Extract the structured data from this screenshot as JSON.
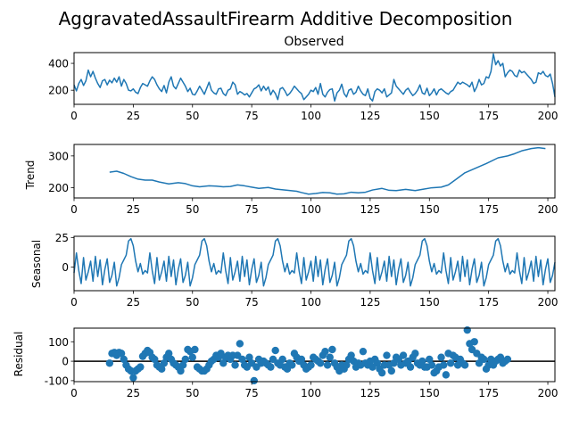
{
  "figure": {
    "suptitle": "AggravatedAssaultFirearm Additive Decomposition"
  },
  "chart_data": [
    {
      "type": "line",
      "name": "observed",
      "title": "Observed",
      "xlabel": "",
      "ylabel": "",
      "xlim": [
        0,
        203
      ],
      "ylim": [
        95,
        480
      ],
      "xticks": [
        0,
        25,
        50,
        75,
        100,
        125,
        150,
        175,
        200
      ],
      "yticks": [
        200,
        400
      ],
      "grid": false,
      "color": "#1f77b4",
      "x_start": 0,
      "values": [
        240,
        195,
        250,
        280,
        235,
        270,
        350,
        300,
        340,
        290,
        250,
        220,
        270,
        280,
        240,
        275,
        255,
        290,
        260,
        300,
        230,
        280,
        250,
        200,
        195,
        210,
        185,
        175,
        220,
        250,
        240,
        230,
        270,
        300,
        280,
        240,
        210,
        190,
        235,
        180,
        260,
        300,
        230,
        210,
        250,
        290,
        260,
        230,
        190,
        215,
        170,
        165,
        195,
        230,
        200,
        170,
        215,
        260,
        200,
        180,
        170,
        210,
        215,
        175,
        160,
        200,
        210,
        260,
        240,
        170,
        190,
        180,
        165,
        175,
        150,
        180,
        210,
        220,
        240,
        195,
        230,
        200,
        225,
        165,
        200,
        175,
        130,
        210,
        220,
        195,
        160,
        175,
        200,
        230,
        210,
        190,
        175,
        130,
        150,
        170,
        200,
        190,
        220,
        170,
        250,
        170,
        150,
        185,
        205,
        210,
        120,
        180,
        200,
        245,
        175,
        150,
        200,
        210,
        170,
        185,
        230,
        195,
        170,
        160,
        210,
        140,
        120,
        190,
        210,
        200,
        180,
        210,
        150,
        165,
        180,
        280,
        230,
        210,
        190,
        170,
        200,
        215,
        185,
        160,
        175,
        200,
        240,
        180,
        170,
        215,
        160,
        180,
        210,
        165,
        200,
        210,
        195,
        180,
        170,
        190,
        200,
        230,
        260,
        245,
        260,
        250,
        240,
        225,
        260,
        190,
        225,
        280,
        240,
        250,
        300,
        290,
        340,
        470,
        390,
        420,
        380,
        400,
        300,
        330,
        350,
        340,
        310,
        300,
        350,
        330,
        340,
        320,
        300,
        280,
        250,
        260,
        330,
        320,
        340,
        310,
        300,
        320,
        250,
        150
      ]
    },
    {
      "type": "line",
      "name": "trend",
      "title": "",
      "xlabel": "",
      "ylabel": "Trend",
      "xlim": [
        0,
        203
      ],
      "ylim": [
        168,
        336
      ],
      "xticks": [
        0,
        25,
        50,
        75,
        100,
        125,
        150,
        175,
        200
      ],
      "yticks": [
        200,
        300
      ],
      "grid": false,
      "color": "#1f77b4",
      "points": [
        [
          15,
          249
        ],
        [
          18,
          252
        ],
        [
          21,
          245
        ],
        [
          24,
          235
        ],
        [
          27,
          227
        ],
        [
          30,
          224
        ],
        [
          33,
          224
        ],
        [
          36,
          218
        ],
        [
          40,
          212
        ],
        [
          44,
          216
        ],
        [
          47,
          213
        ],
        [
          50,
          206
        ],
        [
          53,
          203
        ],
        [
          57,
          206
        ],
        [
          60,
          205
        ],
        [
          63,
          203
        ],
        [
          66,
          204
        ],
        [
          69,
          209
        ],
        [
          72,
          206
        ],
        [
          75,
          202
        ],
        [
          78,
          198
        ],
        [
          82,
          201
        ],
        [
          85,
          196
        ],
        [
          90,
          192
        ],
        [
          94,
          189
        ],
        [
          96,
          185
        ],
        [
          99,
          180
        ],
        [
          102,
          182
        ],
        [
          105,
          185
        ],
        [
          108,
          184
        ],
        [
          111,
          180
        ],
        [
          114,
          181
        ],
        [
          117,
          186
        ],
        [
          120,
          184
        ],
        [
          123,
          186
        ],
        [
          126,
          193
        ],
        [
          130,
          198
        ],
        [
          133,
          192
        ],
        [
          136,
          191
        ],
        [
          140,
          195
        ],
        [
          144,
          191
        ],
        [
          147,
          195
        ],
        [
          151,
          200
        ],
        [
          155,
          202
        ],
        [
          158,
          209
        ],
        [
          161,
          225
        ],
        [
          165,
          247
        ],
        [
          169,
          260
        ],
        [
          174,
          276
        ],
        [
          179,
          294
        ],
        [
          183,
          300
        ],
        [
          186,
          307
        ],
        [
          189,
          316
        ],
        [
          193,
          323
        ],
        [
          196,
          326
        ],
        [
          199,
          323
        ]
      ]
    },
    {
      "type": "line",
      "name": "seasonal",
      "title": "",
      "xlabel": "",
      "ylabel": "Seasonal",
      "xlim": [
        0,
        203
      ],
      "ylim": [
        -20,
        26
      ],
      "xticks": [
        0,
        25,
        50,
        75,
        100,
        125,
        150,
        175,
        200
      ],
      "yticks": [
        0,
        25
      ],
      "grid": false,
      "color": "#1f77b4",
      "period": 31,
      "x_start": 0,
      "pattern": [
        -5,
        12,
        -3,
        -14,
        8,
        -11,
        -4,
        5,
        -12,
        9,
        -8,
        6,
        -15,
        -2,
        7,
        -13,
        -7,
        4,
        -16,
        -9,
        2,
        6,
        10,
        22,
        24,
        18,
        5,
        -4,
        3,
        -6,
        -3
      ]
    },
    {
      "type": "scatter",
      "name": "residual",
      "title": "",
      "xlabel": "",
      "ylabel": "Residual",
      "xlim": [
        0,
        203
      ],
      "ylim": [
        -105,
        170
      ],
      "xticks": [
        0,
        25,
        50,
        75,
        100,
        125,
        150,
        175,
        200
      ],
      "yticks": [
        -100,
        0,
        100
      ],
      "grid": false,
      "color": "#1f77b4",
      "hline": 0,
      "x_start": 15,
      "values": [
        -10,
        40,
        45,
        30,
        45,
        40,
        10,
        -20,
        -40,
        -50,
        -85,
        -50,
        -40,
        -30,
        25,
        40,
        55,
        45,
        20,
        10,
        -20,
        -30,
        -40,
        -10,
        20,
        40,
        10,
        -10,
        -20,
        -30,
        -50,
        -20,
        10,
        60,
        50,
        20,
        60,
        -30,
        -40,
        -50,
        -50,
        -40,
        -20,
        0,
        10,
        30,
        20,
        40,
        -10,
        20,
        30,
        10,
        30,
        -20,
        30,
        90,
        10,
        -20,
        -30,
        20,
        -10,
        -100,
        -30,
        10,
        -10,
        0,
        -10,
        -20,
        -30,
        10,
        55,
        -10,
        -20,
        10,
        -30,
        -40,
        -10,
        -20,
        40,
        20,
        0,
        10,
        -20,
        -40,
        -30,
        -20,
        20,
        10,
        0,
        -10,
        30,
        50,
        -20,
        20,
        60,
        -10,
        -30,
        -50,
        -20,
        -40,
        -20,
        10,
        30,
        0,
        -30,
        -10,
        -20,
        50,
        -10,
        -20,
        0,
        -30,
        10,
        -10,
        -40,
        -60,
        -20,
        30,
        -20,
        -50,
        -10,
        20,
        10,
        -20,
        30,
        -10,
        0,
        -30,
        20,
        40,
        -10,
        -20,
        0,
        -30,
        -30,
        10,
        -20,
        -60,
        -50,
        -30,
        20,
        -20,
        -70,
        40,
        -10,
        30,
        20,
        -20,
        10,
        -10,
        -20,
        160,
        90,
        60,
        100,
        40,
        -10,
        20,
        10,
        -40,
        -20,
        10,
        -20,
        0,
        10,
        20,
        -10,
        0,
        10
      ]
    }
  ]
}
